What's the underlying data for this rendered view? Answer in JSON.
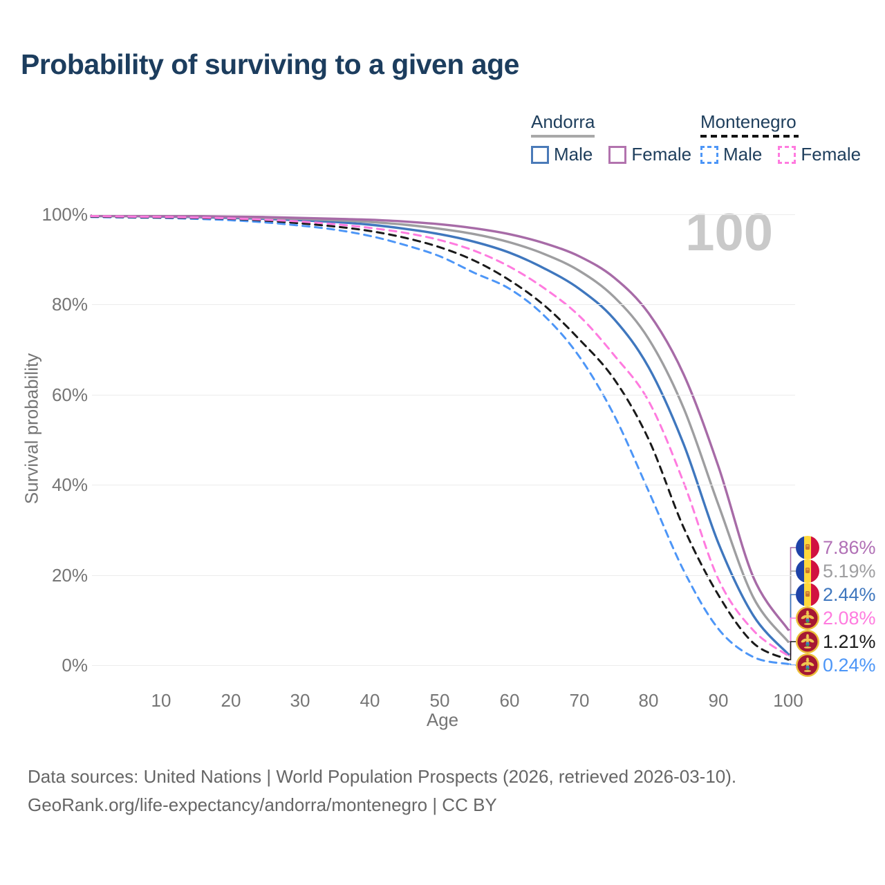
{
  "title": "Probability of surviving to a given age",
  "watermark": "100",
  "legend": {
    "groups": [
      {
        "country": "Andorra",
        "line_style": "solid",
        "underline_color": "#a8a8a8",
        "items": [
          {
            "label": "Male",
            "color": "#4A7AB8"
          },
          {
            "label": "Female",
            "color": "#B273AE"
          }
        ]
      },
      {
        "country": "Montenegro",
        "line_style": "dashed",
        "underline_color": "#121212",
        "items": [
          {
            "label": "Male",
            "color": "#4D96F7"
          },
          {
            "label": "Female",
            "color": "#FF7BDF"
          }
        ]
      }
    ]
  },
  "chart_data": {
    "type": "line",
    "x_label": "Age",
    "y_label": "Survival probability",
    "x_ticks": [
      10,
      20,
      30,
      40,
      50,
      60,
      70,
      80,
      90,
      100
    ],
    "y_ticks": [
      0,
      20,
      40,
      60,
      80,
      100
    ],
    "y_tick_suffix": "%",
    "xlim": [
      0,
      100
    ],
    "ylim": [
      0,
      100
    ],
    "grid": "horizontal",
    "ages": [
      0,
      5,
      10,
      15,
      20,
      25,
      30,
      35,
      40,
      45,
      50,
      55,
      60,
      65,
      70,
      75,
      80,
      85,
      90,
      95,
      100
    ],
    "series": [
      {
        "name": "Andorra Female",
        "country": "Andorra",
        "sex": "Female",
        "dash": "solid",
        "color": "#A76BA7",
        "label_color": "#B06FB5",
        "flag": "andorra",
        "end_label": "7.86%",
        "values": [
          99.7,
          99.7,
          99.6,
          99.6,
          99.5,
          99.4,
          99.2,
          99.0,
          98.8,
          98.4,
          97.8,
          96.9,
          95.6,
          93.6,
          90.7,
          86.0,
          78.0,
          64.5,
          44.0,
          19.5,
          7.86
        ]
      },
      {
        "name": "Andorra",
        "country": "Andorra",
        "sex": "Both",
        "dash": "solid",
        "color": "#9E9EA0",
        "label_color": "#9E9EA0",
        "flag": "andorra",
        "end_label": "5.19%",
        "values": [
          99.7,
          99.6,
          99.6,
          99.5,
          99.4,
          99.2,
          99.0,
          98.7,
          98.3,
          97.7,
          96.8,
          95.6,
          93.8,
          91.2,
          87.5,
          81.7,
          72.3,
          57.0,
          35.5,
          15.0,
          5.19
        ]
      },
      {
        "name": "Andorra Male",
        "country": "Andorra",
        "sex": "Male",
        "dash": "solid",
        "color": "#3F77BE",
        "label_color": "#3F77BE",
        "flag": "andorra",
        "end_label": "2.44%",
        "values": [
          99.6,
          99.6,
          99.5,
          99.4,
          99.2,
          99.0,
          98.7,
          98.3,
          97.7,
          96.8,
          95.6,
          93.9,
          91.5,
          88.0,
          83.5,
          76.8,
          66.0,
          49.0,
          27.0,
          11.0,
          2.44
        ]
      },
      {
        "name": "Montenegro Female",
        "country": "Montenegro",
        "sex": "Female",
        "dash": "dashed",
        "color": "#FF7BDF",
        "label_color": "#FF7BDF",
        "flag": "montenegro",
        "end_label": "2.08%",
        "values": [
          99.6,
          99.5,
          99.4,
          99.3,
          99.1,
          98.8,
          98.4,
          97.8,
          97.0,
          95.9,
          94.3,
          91.9,
          88.4,
          83.6,
          77.5,
          68.8,
          58.5,
          40.5,
          19.0,
          7.7,
          2.08
        ]
      },
      {
        "name": "Montenegro",
        "country": "Montenegro",
        "sex": "Both",
        "dash": "dashed",
        "color": "#1A1A1A",
        "label_color": "#1A1A1A",
        "flag": "montenegro",
        "end_label": "1.21%",
        "values": [
          99.5,
          99.4,
          99.3,
          99.2,
          99.0,
          98.6,
          98.0,
          97.3,
          96.3,
          94.8,
          92.7,
          89.7,
          85.4,
          79.8,
          72.3,
          63.5,
          50.0,
          30.5,
          15.5,
          4.9,
          1.21
        ]
      },
      {
        "name": "Montenegro Male",
        "country": "Montenegro",
        "sex": "Male",
        "dash": "dashed",
        "color": "#4D96F7",
        "label_color": "#4D96F7",
        "flag": "montenegro",
        "end_label": "0.24%",
        "values": [
          99.4,
          99.3,
          99.2,
          99.0,
          98.7,
          98.2,
          97.5,
          96.6,
          95.2,
          93.2,
          90.7,
          87.0,
          83.5,
          77.5,
          68.5,
          55.5,
          38.5,
          21.0,
          8.0,
          1.8,
          0.24
        ]
      }
    ]
  },
  "flags": {
    "andorra": {
      "blue": "#1E43A8",
      "yellow": "#FFD83B",
      "red": "#D11241",
      "crest": "#C8742C"
    },
    "montenegro": {
      "ring": "#ECBF3A",
      "field": "#A51733",
      "gold": "#F0C751",
      "shield_blue": "#3E7EC1",
      "shield_green": "#3FA43F"
    }
  },
  "footer": {
    "line1": "Data sources: United Nations | World Population Prospects (2026, retrieved 2026-03-10).",
    "line2": "GeoRank.org/life-expectancy/andorra/montenegro | CC BY"
  }
}
